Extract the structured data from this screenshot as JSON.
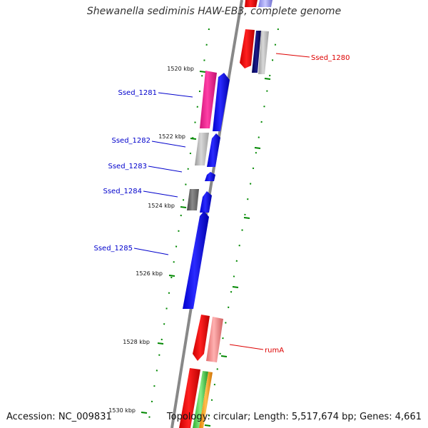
{
  "title": "Shewanella sediminis HAW-EB3, complete genome",
  "accession": "Accession: NC_009831",
  "topology": "Topology: circular; Length: 5,517,674 bp; Genes: 4,661",
  "colors": {
    "forward_label": "#0000cc",
    "reverse_label": "#dd0000",
    "tick": "#008800",
    "backbone": "#888888"
  },
  "scale_labels": [
    "1520 kbp",
    "1522 kbp",
    "1524 kbp",
    "1526 kbp",
    "1528 kbp",
    "1530 kbp"
  ],
  "gene_labels": [
    {
      "text": "Ssed_1280",
      "strand": "reverse"
    },
    {
      "text": "Ssed_1281",
      "strand": "forward"
    },
    {
      "text": "Ssed_1282",
      "strand": "forward"
    },
    {
      "text": "Ssed_1283",
      "strand": "forward"
    },
    {
      "text": "Ssed_1284",
      "strand": "forward"
    },
    {
      "text": "Ssed_1285",
      "strand": "forward"
    },
    {
      "text": "rumA",
      "strand": "reverse"
    }
  ]
}
